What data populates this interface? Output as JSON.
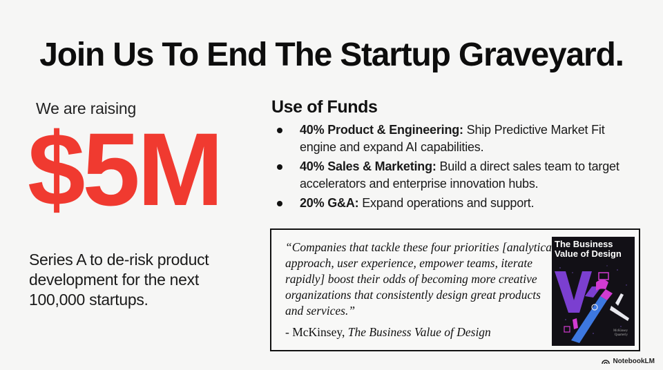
{
  "title": "Join Us To End The Startup Graveyard.",
  "raise": {
    "intro": "We are raising",
    "amount": "$5M",
    "description": "Series A to de-risk product development for the next 100,000 startups."
  },
  "funds": {
    "heading": "Use of Funds",
    "items": [
      {
        "label": "40% Product & Engineering:",
        "text": " Ship Predictive Market Fit engine and expand AI capabilities."
      },
      {
        "label": "40% Sales & Marketing:",
        "text": " Build a direct sales team to target accelerators and enterprise innovation hubs."
      },
      {
        "label": "20% G&A:",
        "text": " Expand operations and support."
      }
    ]
  },
  "quote": {
    "text": "“Companies that tackle these four priorities [analytical approach, user experience, empower teams, iterate rapidly] boost their odds of becoming more creative organizations that consistently design great products and services.”",
    "attribution_prefix": "- McKinsey, ",
    "attribution_source": "The Business Value of Design"
  },
  "book": {
    "title": "The Business Value of Design",
    "publisher_line1": "McKinsey",
    "publisher_line2": "Quarterly",
    "colors": {
      "background": "#121016",
      "purple": "#7b3fd0",
      "magenta": "#d23bd2",
      "blue": "#3d78e0"
    }
  },
  "branding": {
    "name": "NotebookLM",
    "icon": "notebooklm-icon"
  },
  "colors": {
    "accent": "#f03a30",
    "text": "#111111",
    "background": "#f6f6f5"
  }
}
